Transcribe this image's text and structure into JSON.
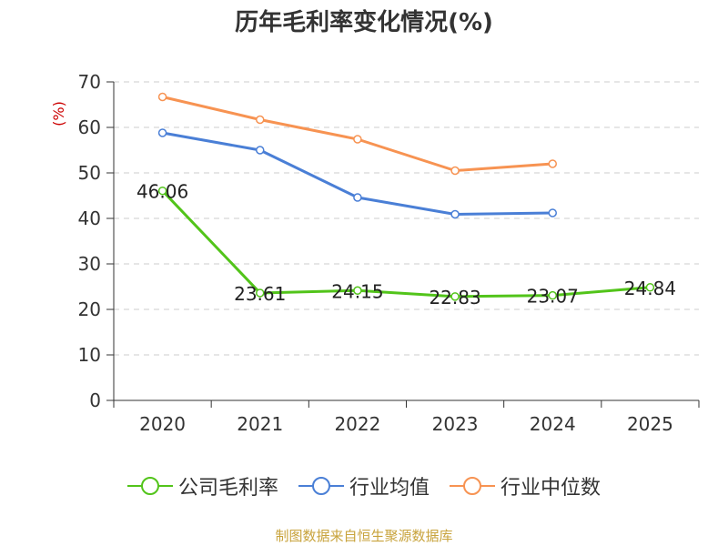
{
  "chart_data": {
    "type": "line",
    "title": "历年毛利率变化情况(%)",
    "ylabel": "(%)",
    "xlabel": "",
    "categories": [
      "2020",
      "2021",
      "2022",
      "2023",
      "2024",
      "2025"
    ],
    "ylim": [
      0,
      70
    ],
    "yticks": [
      0,
      10,
      20,
      30,
      40,
      50,
      60,
      70
    ],
    "grid": true,
    "legend_position": "bottom",
    "series": [
      {
        "name": "公司毛利率",
        "color": "#52c41a",
        "values": [
          46.06,
          23.61,
          24.15,
          22.83,
          23.07,
          24.84
        ],
        "labels": [
          "46.06",
          "23.61",
          "24.15",
          "22.83",
          "23.07",
          "24.84"
        ]
      },
      {
        "name": "行业均值",
        "color": "#4a7fd6",
        "values": [
          58.8,
          55.0,
          44.6,
          40.9,
          41.2,
          null
        ]
      },
      {
        "name": "行业中位数",
        "color": "#f79352",
        "values": [
          66.7,
          61.7,
          57.4,
          50.5,
          52.0,
          null
        ]
      }
    ]
  },
  "source_note": "制图数据来自恒生聚源数据库",
  "colors": {
    "ylabel": "#cc0000",
    "source": "#c8a33c",
    "axis": "#333333",
    "grid": "#cccccc"
  }
}
